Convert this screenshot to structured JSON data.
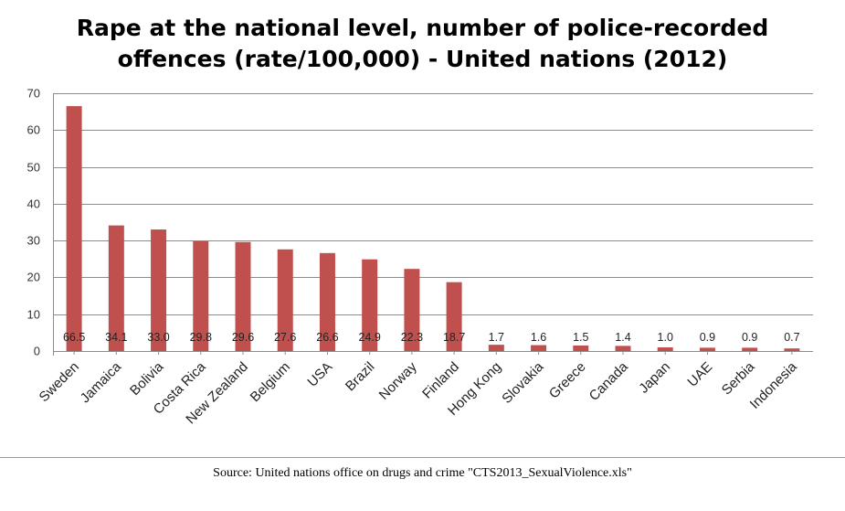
{
  "chart_data": {
    "type": "bar",
    "title_line1": "Rape at the national level, number of police-recorded",
    "title_line2": "offences (rate/100,000) - United nations (2012)",
    "categories": [
      "Sweden",
      "Jamaica",
      "Bolivia",
      "Costa Rica",
      "New Zealand",
      "Belgium",
      "USA",
      "Brazil",
      "Norway",
      "Finland",
      "Hong Kong",
      "Slovakia",
      "Greece",
      "Canada",
      "Japan",
      "UAE",
      "Serbia",
      "Indonesia"
    ],
    "values": [
      66.5,
      34.1,
      33.0,
      29.8,
      29.6,
      27.6,
      26.6,
      24.9,
      22.3,
      18.7,
      1.7,
      1.6,
      1.5,
      1.4,
      1.0,
      0.9,
      0.9,
      0.7
    ],
    "value_labels": [
      "66.5",
      "34.1",
      "33.0",
      "29.8",
      "29.6",
      "27.6",
      "26.6",
      "24.9",
      "22.3",
      "18.7",
      "1.7",
      "1.6",
      "1.5",
      "1.4",
      "1.0",
      "0.9",
      "0.9",
      "0.7"
    ],
    "ylim": [
      0,
      70
    ],
    "yticks": [
      0,
      10,
      20,
      30,
      40,
      50,
      60,
      70
    ],
    "ytick_labels": [
      "0",
      "10",
      "20",
      "30",
      "40",
      "50",
      "60",
      "70"
    ],
    "grid": true,
    "bar_color": "#c0504d",
    "grid_color": "#8c8c8c",
    "xlabel": "",
    "ylabel": ""
  },
  "source": "Source: United nations office on drugs and crime \"CTS2013_SexualViolence.xls\""
}
